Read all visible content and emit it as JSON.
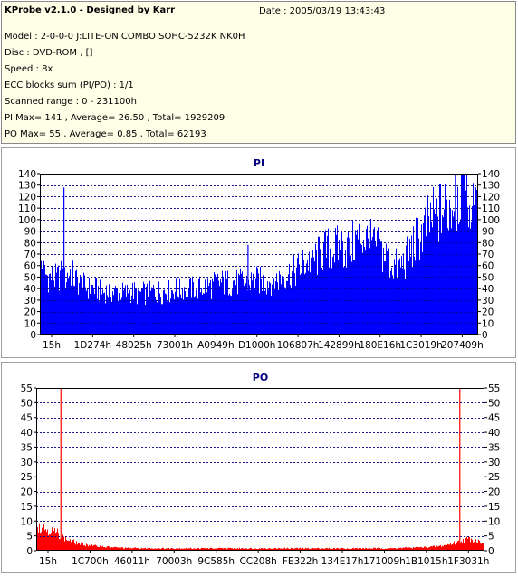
{
  "header": {
    "title": "KProbe v2.1.0 - Designed by Karr",
    "date": "Date : 2005/03/19 13:43:43",
    "lines": [
      "Model : 2-0-0-0 J:LITE-ON COMBO SOHC-5232K NK0H",
      "Disc : DVD-ROM ,  []",
      "Speed : 8x",
      "ECC blocks sum (PI/PO) : 1/1",
      "Scanned range : 0 - 231100h",
      "PI Max= 141 , Average= 26.50 , Total= 1929209",
      "PO Max= 55 , Average= 0.85 , Total= 62193"
    ]
  },
  "colors": {
    "pi": "#0000ff",
    "po": "#ff0000",
    "title": "#000080",
    "grid": "#000080"
  },
  "chart_data": [
    {
      "type": "area",
      "title": "PI",
      "ylim": [
        0,
        140
      ],
      "y_ticks": [
        0,
        10,
        20,
        30,
        40,
        50,
        60,
        70,
        80,
        90,
        100,
        110,
        120,
        130,
        140
      ],
      "x_tick_labels": [
        "15h",
        "1D274h",
        "48025h",
        "73001h",
        "A0949h",
        "D1000h",
        "106807h",
        "142899h",
        "180E16h",
        "1C3019h",
        "207409h"
      ],
      "series": [
        {
          "values": [
            65,
            55,
            52,
            50,
            50,
            49,
            48,
            52,
            51,
            47,
            53,
            55,
            50,
            47,
            45,
            43,
            42,
            41,
            40,
            41,
            40,
            38,
            37,
            37,
            38,
            37,
            37,
            37,
            37,
            37,
            36,
            36,
            37,
            37,
            37,
            35,
            36,
            37,
            35,
            37,
            36,
            38,
            36,
            38,
            36,
            39,
            38,
            37,
            39,
            40,
            39,
            38,
            41,
            40,
            40,
            40,
            41,
            40,
            41,
            41,
            43,
            42,
            42,
            44,
            45,
            45,
            45,
            45,
            45,
            45,
            46,
            45,
            45,
            46,
            45,
            45,
            46,
            46,
            47,
            47,
            46,
            46,
            46,
            47,
            47,
            48,
            48,
            50,
            51,
            53,
            53,
            53,
            55,
            57,
            59,
            61,
            63,
            64,
            65,
            66,
            67,
            69,
            71,
            73,
            74,
            75,
            74,
            75,
            75,
            76,
            75,
            76,
            77,
            79,
            82,
            84,
            85,
            85,
            82,
            80,
            78,
            76,
            74,
            72,
            70,
            68,
            63,
            61,
            60,
            59,
            60,
            62,
            65,
            70,
            74,
            78,
            82,
            86,
            88,
            92,
            96,
            99,
            101,
            103,
            105,
            108,
            108,
            110,
            112,
            115,
            117,
            120,
            130,
            128,
            118,
            112,
            107,
            104,
            100
          ]
        }
      ],
      "spikes": [
        {
          "at": 0.055,
          "value": 128
        },
        {
          "at": 0.475,
          "value": 78
        },
        {
          "at": 0.705,
          "value": 84
        },
        {
          "at": 0.755,
          "value": 99
        },
        {
          "at": 0.948,
          "value": 141
        },
        {
          "at": 0.968,
          "value": 141
        }
      ]
    },
    {
      "type": "area",
      "title": "PO",
      "ylim": [
        0,
        55
      ],
      "y_ticks": [
        0,
        5,
        10,
        15,
        20,
        25,
        30,
        35,
        40,
        45,
        50,
        55
      ],
      "x_tick_labels": [
        "15h",
        "1C700h",
        "46011h",
        "70003h",
        "9C585h",
        "CC208h",
        "FE322h",
        "134E17h",
        "171009h",
        "1B1015h",
        "1F3031h"
      ],
      "series": [
        {
          "values": [
            9,
            8,
            7.5,
            7,
            6.5,
            6,
            5,
            4,
            3.5,
            3,
            2.5,
            2.2,
            2,
            1.8,
            1.6,
            1.5,
            1.4,
            1.3,
            1.2,
            1.1,
            1,
            1,
            0.9,
            0.9,
            0.9,
            0.8,
            0.8,
            0.8,
            0.8,
            0.8,
            0.8,
            0.8,
            0.8,
            0.8,
            0.8,
            0.8,
            0.8,
            0.8,
            0.8,
            0.8,
            0.8,
            0.8,
            0.8,
            0.8,
            0.8,
            0.8,
            0.8,
            0.8,
            0.8,
            0.8,
            0.8,
            0.8,
            0.8,
            0.8,
            0.8,
            0.8,
            0.8,
            0.8,
            0.8,
            0.8,
            0.8,
            0.8,
            0.8,
            0.8,
            0.8,
            0.8,
            0.8,
            0.8,
            0.8,
            0.8,
            0.8,
            0.8,
            0.8,
            0.8,
            0.8,
            0.8,
            0.8,
            0.8,
            0.8,
            0.8,
            0.8,
            0.8,
            0.8,
            0.8,
            0.8,
            0.8,
            0.8,
            0.8,
            0.9,
            0.9,
            1,
            1,
            1,
            1.1,
            1.1,
            1.2,
            1.3,
            1.4,
            1.5,
            1.7,
            2,
            2.3,
            2.7,
            3,
            3.5,
            4,
            4,
            3.5,
            3,
            3
          ]
        }
      ],
      "spikes": [
        {
          "at": 0.055,
          "value": 55
        },
        {
          "at": 0.945,
          "value": 55
        }
      ]
    }
  ]
}
